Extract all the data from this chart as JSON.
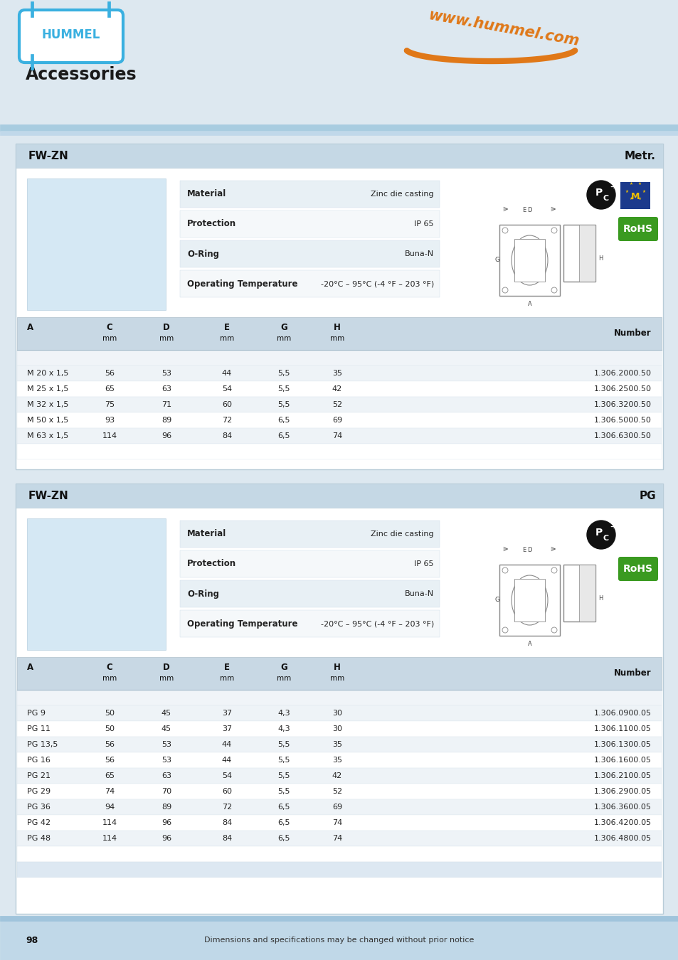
{
  "bg_color": "#dde8f0",
  "panel_border": "#b8ccd8",
  "header_bar_color": "#c5d8e5",
  "spec_row_colors": [
    "#e8f0f5",
    "#f5f8fa"
  ],
  "table_header_bg": "#c8d8e4",
  "table_row_colors": [
    "#eef3f7",
    "#ffffff"
  ],
  "table_alt_bg": "#dde8f2",
  "text_dark": "#222222",
  "text_mid": "#444444",
  "blue_logo": "#3ab0e0",
  "orange": "#e07818",
  "green_rohs": "#3a9a20",
  "blue_eu": "#1a3a8a",
  "footer_bg": "#c0d8e8",
  "title": "Accessories",
  "website": "www.hummel.com",
  "footer_text": "Dimensions and specifications may be changed without prior notice",
  "page_number": "98",
  "section1": {
    "label": "FW-ZN",
    "type_label": "Metr.",
    "specs": [
      [
        "Material",
        "Zinc die casting"
      ],
      [
        "Protection",
        "IP 65"
      ],
      [
        "O-Ring",
        "Buna-N"
      ],
      [
        "Operating Temperature",
        "-20°C – 95°C (-4 °F – 203 °F)"
      ]
    ],
    "col_headers": [
      "A",
      "C",
      "D",
      "E",
      "G",
      "H",
      "Number"
    ],
    "rows": [
      [
        "M 20 x 1,5",
        "56",
        "53",
        "44",
        "5,5",
        "35",
        "1.306.2000.50"
      ],
      [
        "M 25 x 1,5",
        "65",
        "63",
        "54",
        "5,5",
        "42",
        "1.306.2500.50"
      ],
      [
        "M 32 x 1,5",
        "75",
        "71",
        "60",
        "5,5",
        "52",
        "1.306.3200.50"
      ],
      [
        "M 50 x 1,5",
        "93",
        "89",
        "72",
        "6,5",
        "69",
        "1.306.5000.50"
      ],
      [
        "M 63 x 1,5",
        "114",
        "96",
        "84",
        "6,5",
        "74",
        "1.306.6300.50"
      ]
    ],
    "num_empty_rows": 4
  },
  "section2": {
    "label": "FW-ZN",
    "type_label": "PG",
    "specs": [
      [
        "Material",
        "Zinc die casting"
      ],
      [
        "Protection",
        "IP 65"
      ],
      [
        "O-Ring",
        "Buna-N"
      ],
      [
        "Operating Temperature",
        "-20°C – 95°C (-4 °F – 203 °F)"
      ]
    ],
    "col_headers": [
      "A",
      "C",
      "D",
      "E",
      "G",
      "H",
      "Number"
    ],
    "rows": [
      [
        "PG 9",
        "50",
        "45",
        "37",
        "4,3",
        "30",
        "1.306.0900.05"
      ],
      [
        "PG 11",
        "50",
        "45",
        "37",
        "4,3",
        "30",
        "1.306.1100.05"
      ],
      [
        "PG 13,5",
        "56",
        "53",
        "44",
        "5,5",
        "35",
        "1.306.1300.05"
      ],
      [
        "PG 16",
        "56",
        "53",
        "44",
        "5,5",
        "35",
        "1.306.1600.05"
      ],
      [
        "PG 21",
        "65",
        "63",
        "54",
        "5,5",
        "42",
        "1.306.2100.05"
      ],
      [
        "PG 29",
        "74",
        "70",
        "60",
        "5,5",
        "52",
        "1.306.2900.05"
      ],
      [
        "PG 36",
        "94",
        "89",
        "72",
        "6,5",
        "69",
        "1.306.3600.05"
      ],
      [
        "PG 42",
        "114",
        "96",
        "84",
        "6,5",
        "74",
        "1.306.4200.05"
      ],
      [
        "PG 48",
        "114",
        "96",
        "84",
        "6,5",
        "74",
        "1.306.4800.05"
      ]
    ],
    "num_empty_rows": 2
  }
}
